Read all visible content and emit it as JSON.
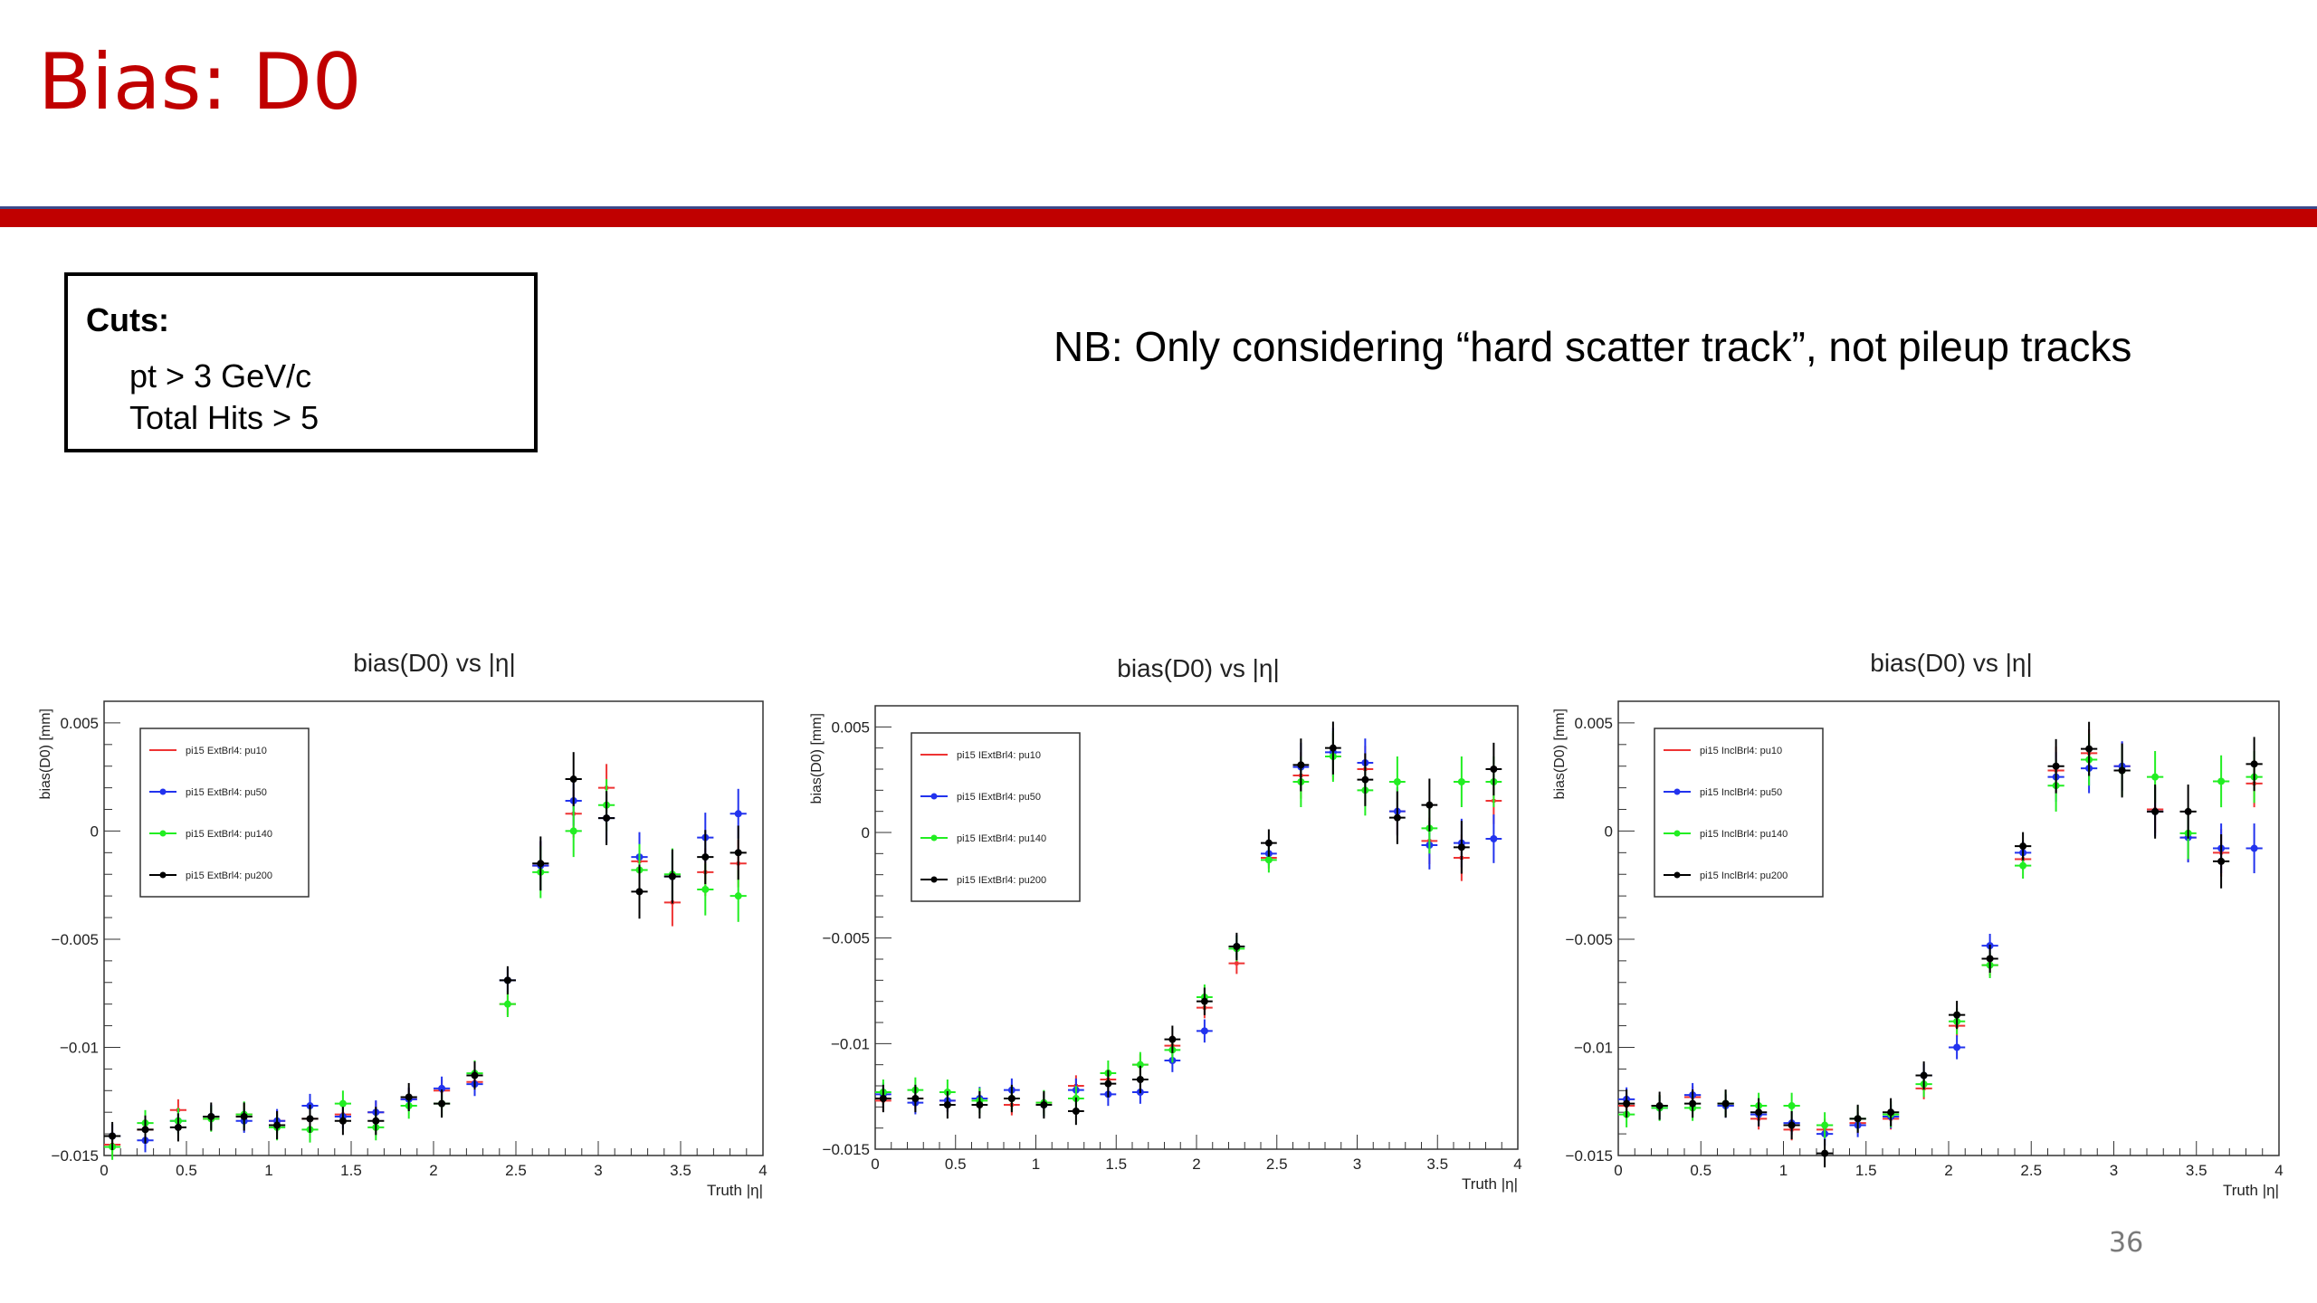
{
  "slide": {
    "title": "Bias: D0",
    "cuts_title": "Cuts:",
    "cuts_lines": [
      "pt > 3 GeV/c",
      "Total Hits > 5"
    ],
    "note": "NB: Only considering “hard scatter track”, not pileup tracks",
    "page_number": "36"
  },
  "colors": {
    "title": "#c00000",
    "pu10": "#ee3333",
    "pu50": "#2233ee",
    "pu140": "#22ee22",
    "pu200": "#000000"
  },
  "chart_data": [
    {
      "type": "scatter",
      "title": "bias(D0) vs |η|",
      "xlabel": "Truth |η|",
      "ylabel": "bias(D0) [mm]",
      "xlim": [
        0,
        4
      ],
      "ylim": [
        -0.015,
        0.006
      ],
      "xticks": [
        "0",
        "0.5",
        "1",
        "1.5",
        "2",
        "2.5",
        "3",
        "3.5",
        "4"
      ],
      "yticks": [
        "0.005",
        "0",
        "−0.005",
        "−0.01",
        "−0.015"
      ],
      "x": [
        0.05,
        0.15,
        0.25,
        0.35,
        0.45,
        0.55,
        0.65,
        0.75,
        0.85,
        0.95,
        1.05,
        1.15,
        1.25,
        1.35,
        1.45,
        1.55,
        1.65,
        1.75,
        1.85,
        1.95,
        2.05,
        2.15,
        2.25,
        2.35,
        2.45,
        2.55,
        2.65,
        2.75,
        2.85,
        2.95,
        3.05,
        3.15,
        3.25,
        3.35,
        3.45,
        3.55,
        3.65,
        3.75,
        3.85,
        3.95
      ],
      "series": [
        {
          "name": "pi15 ExtBrl4: pu10",
          "color": "#ee3333",
          "values": [
            -0.0145,
            null,
            -0.0138,
            null,
            -0.0129,
            null,
            -0.0133,
            null,
            -0.0131,
            null,
            -0.0134,
            null,
            -0.0133,
            null,
            -0.0131,
            null,
            -0.013,
            null,
            -0.0124,
            null,
            -0.012,
            null,
            -0.0116,
            null,
            -0.008,
            null,
            -0.0016,
            null,
            0.0008,
            null,
            0.002,
            null,
            -0.0014,
            null,
            -0.0033,
            null,
            -0.0019,
            null,
            -0.0015,
            null
          ]
        },
        {
          "name": "pi15 ExtBrl4: pu50",
          "color": "#2233ee",
          "values": [
            -0.0141,
            null,
            -0.0143,
            null,
            -0.0134,
            null,
            -0.0132,
            null,
            -0.0134,
            null,
            -0.0134,
            null,
            -0.0127,
            null,
            -0.0132,
            null,
            -0.013,
            null,
            -0.0124,
            null,
            -0.0119,
            null,
            -0.0117,
            null,
            -0.0069,
            null,
            -0.0016,
            null,
            0.0014,
            null,
            0.0006,
            null,
            -0.0012,
            null,
            -0.0021,
            null,
            -0.0003,
            null,
            0.0008,
            null
          ]
        },
        {
          "name": "pi15 ExtBrl4: pu140",
          "color": "#22ee22",
          "values": [
            -0.0146,
            null,
            -0.0135,
            null,
            -0.0134,
            null,
            -0.0133,
            null,
            -0.0131,
            null,
            -0.0137,
            null,
            -0.0138,
            null,
            -0.0126,
            null,
            -0.0137,
            null,
            -0.0127,
            null,
            -0.0126,
            null,
            -0.0112,
            null,
            -0.008,
            null,
            -0.0019,
            null,
            0.0,
            null,
            0.0012,
            null,
            -0.0018,
            null,
            -0.002,
            null,
            -0.0027,
            null,
            -0.003,
            null
          ]
        },
        {
          "name": "pi15 ExtBrl4: pu200",
          "color": "#000000",
          "values": [
            -0.0141,
            null,
            -0.0138,
            null,
            -0.0137,
            null,
            -0.0132,
            null,
            -0.0132,
            null,
            -0.0136,
            null,
            -0.0133,
            null,
            -0.0134,
            null,
            -0.0134,
            null,
            -0.0123,
            null,
            -0.0126,
            null,
            -0.0113,
            null,
            -0.0069,
            null,
            -0.0015,
            null,
            0.0024,
            null,
            0.0006,
            null,
            -0.0028,
            null,
            -0.0021,
            null,
            -0.0012,
            null,
            -0.001,
            null
          ]
        }
      ],
      "legend": [
        "pi15 ExtBrl4: pu10",
        "pi15 ExtBrl4: pu50",
        "pi15 ExtBrl4: pu140",
        "pi15 ExtBrl4: pu200"
      ],
      "legend_position": "top-left"
    },
    {
      "type": "scatter",
      "title": "bias(D0) vs |η|",
      "xlabel": "Truth |η|",
      "ylabel": "bias(D0) [mm]",
      "xlim": [
        0,
        4
      ],
      "ylim": [
        -0.015,
        0.006
      ],
      "xticks": [
        "0",
        "0.5",
        "1",
        "1.5",
        "2",
        "2.5",
        "3",
        "3.5",
        "4"
      ],
      "yticks": [
        "0.005",
        "0",
        "−0.005",
        "−0.01",
        "−0.015"
      ],
      "x": [
        0.05,
        0.15,
        0.25,
        0.35,
        0.45,
        0.55,
        0.65,
        0.75,
        0.85,
        0.95,
        1.05,
        1.15,
        1.25,
        1.35,
        1.45,
        1.55,
        1.65,
        1.75,
        1.85,
        1.95,
        2.05,
        2.15,
        2.25,
        2.35,
        2.45,
        2.55,
        2.65,
        2.75,
        2.85,
        2.95,
        3.05,
        3.15,
        3.25,
        3.35,
        3.45,
        3.55,
        3.65,
        3.75,
        3.85,
        3.95
      ],
      "series": [
        {
          "name": "pi15 IExtBrl4: pu10",
          "color": "#ee3333",
          "values": [
            -0.0127,
            null,
            -0.0126,
            null,
            -0.0127,
            null,
            -0.0126,
            null,
            -0.0129,
            null,
            -0.0128,
            null,
            -0.012,
            null,
            -0.0117,
            null,
            -0.011,
            null,
            -0.0101,
            null,
            -0.0083,
            null,
            -0.0062,
            null,
            -0.0012,
            null,
            0.0027,
            null,
            0.0036,
            null,
            0.003,
            null,
            0.001,
            null,
            -0.0004,
            null,
            -0.0012,
            null,
            0.0015,
            null
          ]
        },
        {
          "name": "pi15 IExtBrl4: pu50",
          "color": "#2233ee",
          "values": [
            -0.0124,
            null,
            -0.0128,
            null,
            -0.0127,
            null,
            -0.0126,
            null,
            -0.0122,
            null,
            -0.0129,
            null,
            -0.0122,
            null,
            -0.0124,
            null,
            -0.0123,
            null,
            -0.0108,
            null,
            -0.0094,
            null,
            -0.0054,
            null,
            -0.001,
            null,
            0.0031,
            null,
            0.0038,
            null,
            0.0033,
            null,
            0.001,
            null,
            -0.0006,
            null,
            -0.0005,
            null,
            -0.0003,
            null
          ]
        },
        {
          "name": "pi15 IExtBrl4: pu140",
          "color": "#22ee22",
          "values": [
            -0.0123,
            null,
            -0.0122,
            null,
            -0.0123,
            null,
            -0.0127,
            null,
            -0.0126,
            null,
            -0.0128,
            null,
            -0.0126,
            null,
            -0.0114,
            null,
            -0.011,
            null,
            -0.0103,
            null,
            -0.0078,
            null,
            -0.0055,
            null,
            -0.0013,
            null,
            0.0024,
            null,
            0.0036,
            null,
            0.002,
            null,
            0.0024,
            null,
            0.0002,
            null,
            0.0024,
            null,
            0.0024,
            null
          ]
        },
        {
          "name": "pi15 IExtBrl4: pu200",
          "color": "#000000",
          "values": [
            -0.0126,
            null,
            -0.0126,
            null,
            -0.0129,
            null,
            -0.0129,
            null,
            -0.0126,
            null,
            -0.0129,
            null,
            -0.0132,
            null,
            -0.0119,
            null,
            -0.0117,
            null,
            -0.0098,
            null,
            -0.008,
            null,
            -0.0054,
            null,
            -0.0005,
            null,
            0.0032,
            null,
            0.004,
            null,
            0.0025,
            null,
            0.0007,
            null,
            0.0013,
            null,
            -0.0007,
            null,
            0.003,
            null
          ]
        }
      ],
      "legend": [
        "pi15 IExtBrl4: pu10",
        "pi15 IExtBrl4: pu50",
        "pi15 IExtBrl4: pu140",
        "pi15 IExtBrl4: pu200"
      ],
      "legend_position": "top-left"
    },
    {
      "type": "scatter",
      "title": "bias(D0) vs |η|",
      "xlabel": "Truth |η|",
      "ylabel": "bias(D0) [mm]",
      "xlim": [
        0,
        4
      ],
      "ylim": [
        -0.015,
        0.006
      ],
      "xticks": [
        "0",
        "0.5",
        "1",
        "1.5",
        "2",
        "2.5",
        "3",
        "3.5",
        "4"
      ],
      "yticks": [
        "0.005",
        "0",
        "−0.005",
        "−0.01",
        "−0.015"
      ],
      "x": [
        0.05,
        0.15,
        0.25,
        0.35,
        0.45,
        0.55,
        0.65,
        0.75,
        0.85,
        0.95,
        1.05,
        1.15,
        1.25,
        1.35,
        1.45,
        1.55,
        1.65,
        1.75,
        1.85,
        1.95,
        2.05,
        2.15,
        2.25,
        2.35,
        2.45,
        2.55,
        2.65,
        2.75,
        2.85,
        2.95,
        3.05,
        3.15,
        3.25,
        3.35,
        3.45,
        3.55,
        3.65,
        3.75,
        3.85,
        3.95
      ],
      "series": [
        {
          "name": "pi15 InclBrl4: pu10",
          "color": "#ee3333",
          "values": [
            -0.0127,
            null,
            -0.0127,
            null,
            -0.0123,
            null,
            -0.0127,
            null,
            -0.0133,
            null,
            -0.0138,
            null,
            -0.0138,
            null,
            -0.0135,
            null,
            -0.0133,
            null,
            -0.0119,
            null,
            -0.009,
            null,
            -0.0062,
            null,
            -0.0013,
            null,
            0.0028,
            null,
            0.0036,
            null,
            0.003,
            null,
            0.001,
            null,
            -0.0003,
            null,
            -0.001,
            null,
            0.0022,
            null
          ]
        },
        {
          "name": "pi15 InclBrl4: pu50",
          "color": "#2233ee",
          "values": [
            -0.0124,
            null,
            -0.0128,
            null,
            -0.0122,
            null,
            -0.0127,
            null,
            -0.0131,
            null,
            -0.0135,
            null,
            -0.014,
            null,
            -0.0136,
            null,
            -0.0132,
            null,
            -0.0113,
            null,
            -0.01,
            null,
            -0.0053,
            null,
            -0.001,
            null,
            0.0025,
            null,
            0.0029,
            null,
            0.003,
            null,
            0.0009,
            null,
            -0.0003,
            null,
            -0.0008,
            null,
            -0.0008,
            null
          ]
        },
        {
          "name": "pi15 InclBrl4: pu140",
          "color": "#22ee22",
          "values": [
            -0.0131,
            null,
            -0.0128,
            null,
            -0.0128,
            null,
            -0.0126,
            null,
            -0.0127,
            null,
            -0.0127,
            null,
            -0.0136,
            null,
            -0.0133,
            null,
            -0.0131,
            null,
            -0.0117,
            null,
            -0.0088,
            null,
            -0.0062,
            null,
            -0.0016,
            null,
            0.0021,
            null,
            0.0033,
            null,
            0.0028,
            null,
            0.0025,
            null,
            -0.0001,
            null,
            0.0023,
            null,
            0.0025,
            null
          ]
        },
        {
          "name": "pi15 InclBrl4: pu200",
          "color": "#000000",
          "values": [
            -0.0126,
            null,
            -0.0127,
            null,
            -0.0126,
            null,
            -0.0126,
            null,
            -0.013,
            null,
            -0.0136,
            null,
            -0.0149,
            null,
            -0.0133,
            null,
            -0.013,
            null,
            -0.0113,
            null,
            -0.0085,
            null,
            -0.0059,
            null,
            -0.0007,
            null,
            0.003,
            null,
            0.0038,
            null,
            0.0028,
            null,
            0.0009,
            null,
            0.0009,
            null,
            -0.0014,
            null,
            0.0031,
            null
          ]
        }
      ],
      "legend": [
        "pi15 InclBrl4: pu10",
        "pi15 InclBrl4: pu50",
        "pi15 InclBrl4: pu140",
        "pi15 InclBrl4: pu200"
      ],
      "legend_position": "top-left"
    }
  ]
}
